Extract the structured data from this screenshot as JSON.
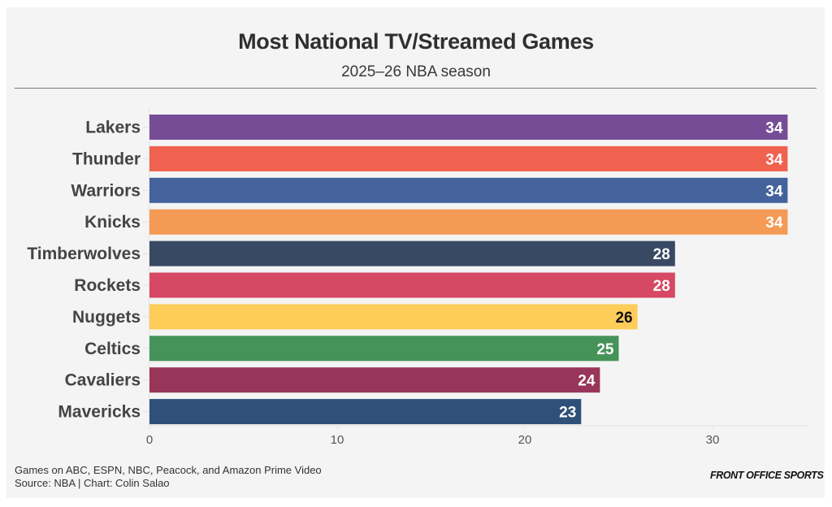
{
  "header": {
    "title": "Most National TV/Streamed Games",
    "subtitle": "2025–26 NBA season"
  },
  "footer": {
    "note": "Games on ABC, ESPN, NBC, Peacock, and Amazon Prime Video",
    "source": "Source: NBA | Chart: Colin Salao",
    "brand": "FRONT OFFICE SPORTS"
  },
  "chart_data": {
    "type": "bar",
    "orientation": "horizontal",
    "title": "Most National TV/Streamed Games",
    "subtitle": "2025–26 NBA season",
    "xlabel": "",
    "ylabel": "",
    "xlim": [
      0,
      35
    ],
    "xticks": [
      0,
      10,
      20,
      30
    ],
    "grid": false,
    "legend": "none",
    "categories": [
      "Lakers",
      "Thunder",
      "Warriors",
      "Knicks",
      "Timberwolves",
      "Rockets",
      "Nuggets",
      "Celtics",
      "Cavaliers",
      "Mavericks"
    ],
    "values": [
      34,
      34,
      34,
      34,
      28,
      28,
      26,
      25,
      24,
      23
    ],
    "colors": [
      "#764c97",
      "#f16150",
      "#44639d",
      "#f59a55",
      "#384963",
      "#d64863",
      "#fecc59",
      "#459359",
      "#983659",
      "#2e5079"
    ],
    "label_colors": [
      "#ffffff",
      "#ffffff",
      "#ffffff",
      "#ffffff",
      "#ffffff",
      "#ffffff",
      "#111111",
      "#ffffff",
      "#ffffff",
      "#ffffff"
    ]
  }
}
